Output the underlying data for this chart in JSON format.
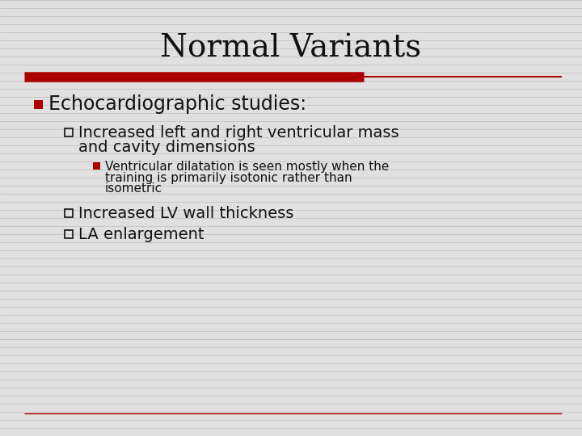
{
  "title": "Normal Variants",
  "title_fontsize": 28,
  "title_font": "DejaVu Serif",
  "background_color": "#e0e0e0",
  "red_bar_color": "#aa0000",
  "text_color": "#111111",
  "bullet1_text": "Echocardiographic studies:",
  "bullet1_fontsize": 17,
  "sub1_line1": "Increased left and right ventricular mass",
  "sub1_line2": "and cavity dimensions",
  "sub1_fontsize": 14,
  "sub2_line1": "Ventricular dilatation is seen mostly when the",
  "sub2_line2": "training is primarily isotonic rather than",
  "sub2_line3": "isometric",
  "sub2_fontsize": 11,
  "sub3_text": "Increased LV wall thickness",
  "sub3_fontsize": 14,
  "sub4_text": "LA enlargement",
  "sub4_fontsize": 14,
  "stripe_color": "#c8c8c8",
  "stripe_linewidth": 0.7
}
